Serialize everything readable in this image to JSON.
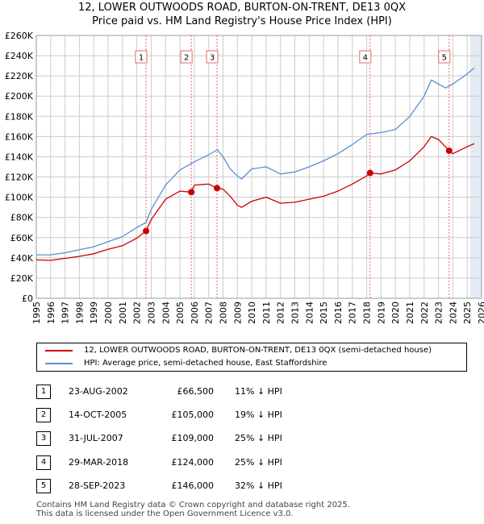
{
  "title_line1": "12, LOWER OUTWOODS ROAD, BURTON-ON-TRENT, DE13 0QX",
  "title_line2": "Price paid vs. HM Land Registry's House Price Index (HPI)",
  "colors": {
    "price_paid": "#cc0000",
    "hpi": "#5b8fd4",
    "marker_line": "#e36a6a",
    "future_shade": "#e4ebf5",
    "grid": "#cccccc"
  },
  "chart_data": {
    "type": "line",
    "title": "12, LOWER OUTWOODS ROAD, BURTON-ON-TRENT, DE13 0QX — Price paid vs. HM Land Registry's House Price Index (HPI)",
    "xlabel": "",
    "ylabel": "",
    "xlim": [
      1995,
      2026
    ],
    "ylim": [
      0,
      260000
    ],
    "yticks": [
      0,
      20000,
      40000,
      60000,
      80000,
      100000,
      120000,
      140000,
      160000,
      180000,
      200000,
      220000,
      240000,
      260000
    ],
    "ytick_labels": [
      "£0",
      "£20K",
      "£40K",
      "£60K",
      "£80K",
      "£100K",
      "£120K",
      "£140K",
      "£160K",
      "£180K",
      "£200K",
      "£220K",
      "£240K",
      "£260K"
    ],
    "xticks": [
      1995,
      1996,
      1997,
      1998,
      1999,
      2000,
      2001,
      2002,
      2003,
      2004,
      2005,
      2006,
      2007,
      2008,
      2009,
      2010,
      2011,
      2012,
      2013,
      2014,
      2015,
      2016,
      2017,
      2018,
      2019,
      2020,
      2021,
      2022,
      2023,
      2024,
      2025,
      2026
    ],
    "grid": true,
    "future_shade_from": 2025.2,
    "series": [
      {
        "name": "12, LOWER OUTWOODS ROAD, BURTON-ON-TRENT, DE13 0QX (semi-detached house)",
        "x": [
          1995,
          1996,
          1997,
          1998,
          1999,
          2000,
          2001,
          2002,
          2002.64,
          2003,
          2004,
          2005,
          2005.79,
          2006,
          2007,
          2007.58,
          2008,
          2008.5,
          2009,
          2009.3,
          2010,
          2011,
          2012,
          2013,
          2014,
          2015,
          2016,
          2017,
          2018,
          2018.24,
          2019,
          2020,
          2021,
          2022,
          2022.5,
          2023,
          2023.74,
          2024,
          2025,
          2025.5
        ],
        "values": [
          38000,
          37500,
          39500,
          41500,
          44000,
          48500,
          52000,
          59500,
          66500,
          78000,
          98000,
          106000,
          105000,
          112000,
          113000,
          109000,
          108000,
          101000,
          92000,
          90000,
          96000,
          100000,
          94000,
          95000,
          98000,
          101000,
          106000,
          113000,
          121000,
          124000,
          123000,
          127000,
          136000,
          150000,
          160000,
          157000,
          146000,
          143000,
          150000,
          153000
        ]
      },
      {
        "name": "HPI: Average price, semi-detached house, East Staffordshire",
        "x": [
          1995,
          1996,
          1997,
          1998,
          1999,
          2000,
          2001,
          2002,
          2002.64,
          2003,
          2004,
          2005,
          2006,
          2007,
          2007.6,
          2008,
          2008.5,
          2009,
          2009.3,
          2010,
          2011,
          2012,
          2013,
          2014,
          2015,
          2016,
          2017,
          2018,
          2019,
          2020,
          2021,
          2022,
          2022.5,
          2023,
          2023.5,
          2024,
          2025,
          2025.5
        ],
        "values": [
          43000,
          43000,
          45000,
          48000,
          51000,
          56000,
          61000,
          70000,
          75000,
          88000,
          112000,
          127000,
          135000,
          142000,
          147000,
          140000,
          128000,
          121000,
          118000,
          128000,
          130000,
          123000,
          125000,
          130000,
          136000,
          143000,
          152000,
          162000,
          164000,
          167000,
          180000,
          200000,
          216000,
          212000,
          208000,
          212000,
          222000,
          228000
        ]
      }
    ],
    "markers": [
      {
        "label": "1",
        "x": 2002.64,
        "y": 66500
      },
      {
        "label": "2",
        "x": 2005.79,
        "y": 105000
      },
      {
        "label": "3",
        "x": 2007.58,
        "y": 109000
      },
      {
        "label": "4",
        "x": 2018.24,
        "y": 124000
      },
      {
        "label": "5",
        "x": 2023.74,
        "y": 146000
      }
    ]
  },
  "legend": {
    "price_paid": "12, LOWER OUTWOODS ROAD, BURTON-ON-TRENT, DE13 0QX (semi-detached house)",
    "hpi": "HPI: Average price, semi-detached house, East Staffordshire"
  },
  "sales": [
    {
      "num": "1",
      "date": "23-AUG-2002",
      "price": "£66,500",
      "hpi": "11% ↓ HPI"
    },
    {
      "num": "2",
      "date": "14-OCT-2005",
      "price": "£105,000",
      "hpi": "19% ↓ HPI"
    },
    {
      "num": "3",
      "date": "31-JUL-2007",
      "price": "£109,000",
      "hpi": "25% ↓ HPI"
    },
    {
      "num": "4",
      "date": "29-MAR-2018",
      "price": "£124,000",
      "hpi": "25% ↓ HPI"
    },
    {
      "num": "5",
      "date": "28-SEP-2023",
      "price": "£146,000",
      "hpi": "32% ↓ HPI"
    }
  ],
  "footer": {
    "line1": "Contains HM Land Registry data © Crown copyright and database right 2025.",
    "line2": "This data is licensed under the Open Government Licence v3.0."
  }
}
